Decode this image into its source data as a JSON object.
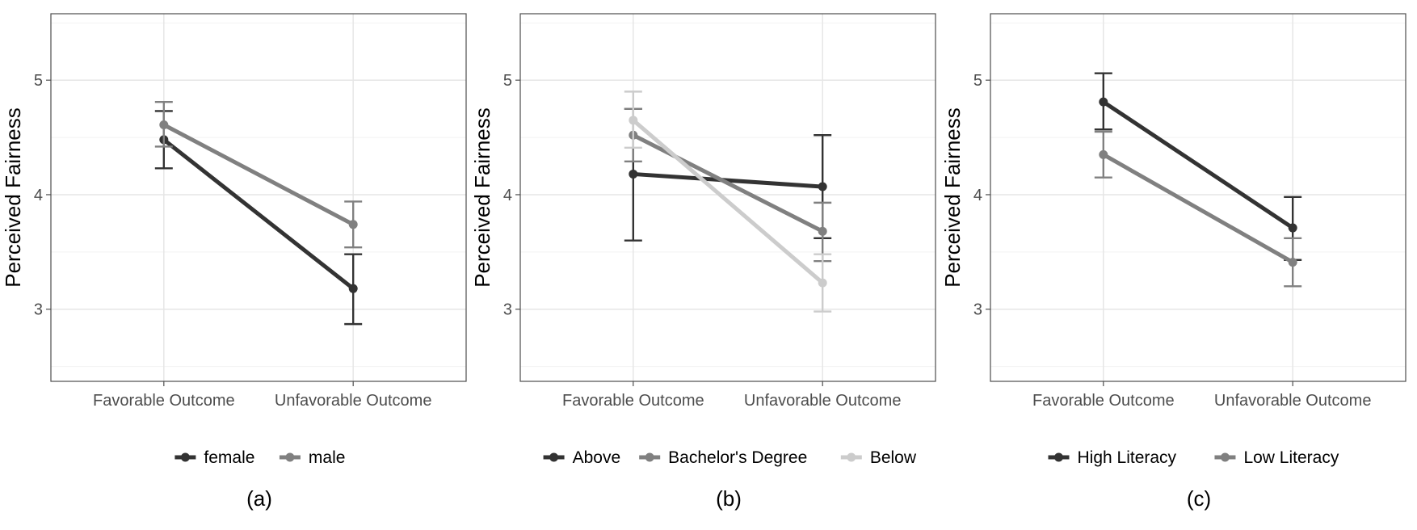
{
  "chart_data": [
    {
      "type": "line",
      "caption": "(a)",
      "ylabel": "Perceived Fairness",
      "xlabel": "",
      "categories": [
        "Favorable Outcome",
        "Unfavorable Outcome"
      ],
      "ylim": [
        2.37,
        5.58
      ],
      "yticks": [
        3,
        4,
        5
      ],
      "grid": true,
      "legend_position": "bottom",
      "series": [
        {
          "name": "female",
          "color": "#333333",
          "values": [
            4.48,
            3.18
          ],
          "lower": [
            4.23,
            2.87
          ],
          "upper": [
            4.73,
            3.48
          ]
        },
        {
          "name": "male",
          "color": "#808080",
          "values": [
            4.61,
            3.74
          ],
          "lower": [
            4.42,
            3.54
          ],
          "upper": [
            4.81,
            3.94
          ]
        }
      ]
    },
    {
      "type": "line",
      "caption": "(b)",
      "ylabel": "Perceived Fairness",
      "xlabel": "",
      "categories": [
        "Favorable Outcome",
        "Unfavorable Outcome"
      ],
      "ylim": [
        2.37,
        5.58
      ],
      "yticks": [
        3,
        4,
        5
      ],
      "grid": true,
      "legend_position": "bottom",
      "series": [
        {
          "name": "Above",
          "color": "#333333",
          "values": [
            4.18,
            4.07
          ],
          "lower": [
            3.6,
            3.62
          ],
          "upper": [
            4.75,
            4.52
          ]
        },
        {
          "name": "Bachelor's Degree",
          "color": "#808080",
          "values": [
            4.52,
            3.68
          ],
          "lower": [
            4.29,
            3.42
          ],
          "upper": [
            4.75,
            3.93
          ]
        },
        {
          "name": "Below",
          "color": "#cccccc",
          "values": [
            4.65,
            3.23
          ],
          "lower": [
            4.41,
            2.98
          ],
          "upper": [
            4.9,
            3.48
          ]
        }
      ]
    },
    {
      "type": "line",
      "caption": "(c)",
      "ylabel": "Perceived Fairness",
      "xlabel": "",
      "categories": [
        "Favorable Outcome",
        "Unfavorable Outcome"
      ],
      "ylim": [
        2.37,
        5.58
      ],
      "yticks": [
        3,
        4,
        5
      ],
      "grid": true,
      "legend_position": "bottom",
      "series": [
        {
          "name": "High Literacy",
          "color": "#333333",
          "values": [
            4.81,
            3.71
          ],
          "lower": [
            4.57,
            3.43
          ],
          "upper": [
            5.06,
            3.98
          ]
        },
        {
          "name": "Low Literacy",
          "color": "#808080",
          "values": [
            4.35,
            3.41
          ],
          "lower": [
            4.15,
            3.2
          ],
          "upper": [
            4.55,
            3.62
          ]
        }
      ]
    }
  ]
}
